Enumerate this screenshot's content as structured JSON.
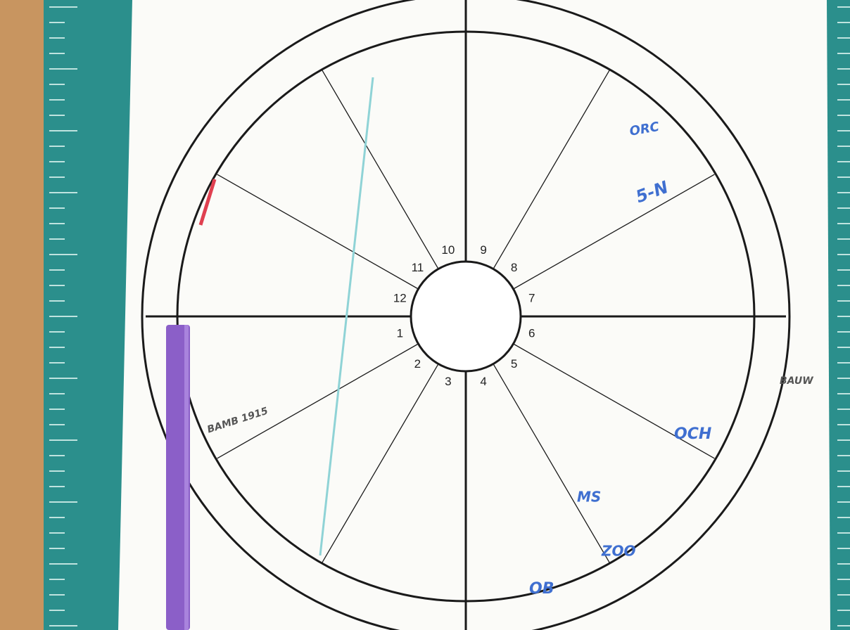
{
  "chart_wheel": {
    "houses": [
      "1",
      "2",
      "3",
      "4",
      "5",
      "6",
      "7",
      "8",
      "9",
      "10",
      "11",
      "12"
    ]
  },
  "handwritten_notes": [
    "5-N",
    "ORC",
    "MS",
    "OB",
    "OCH",
    "ZOO",
    "BAUW",
    "BAMB 1915"
  ]
}
